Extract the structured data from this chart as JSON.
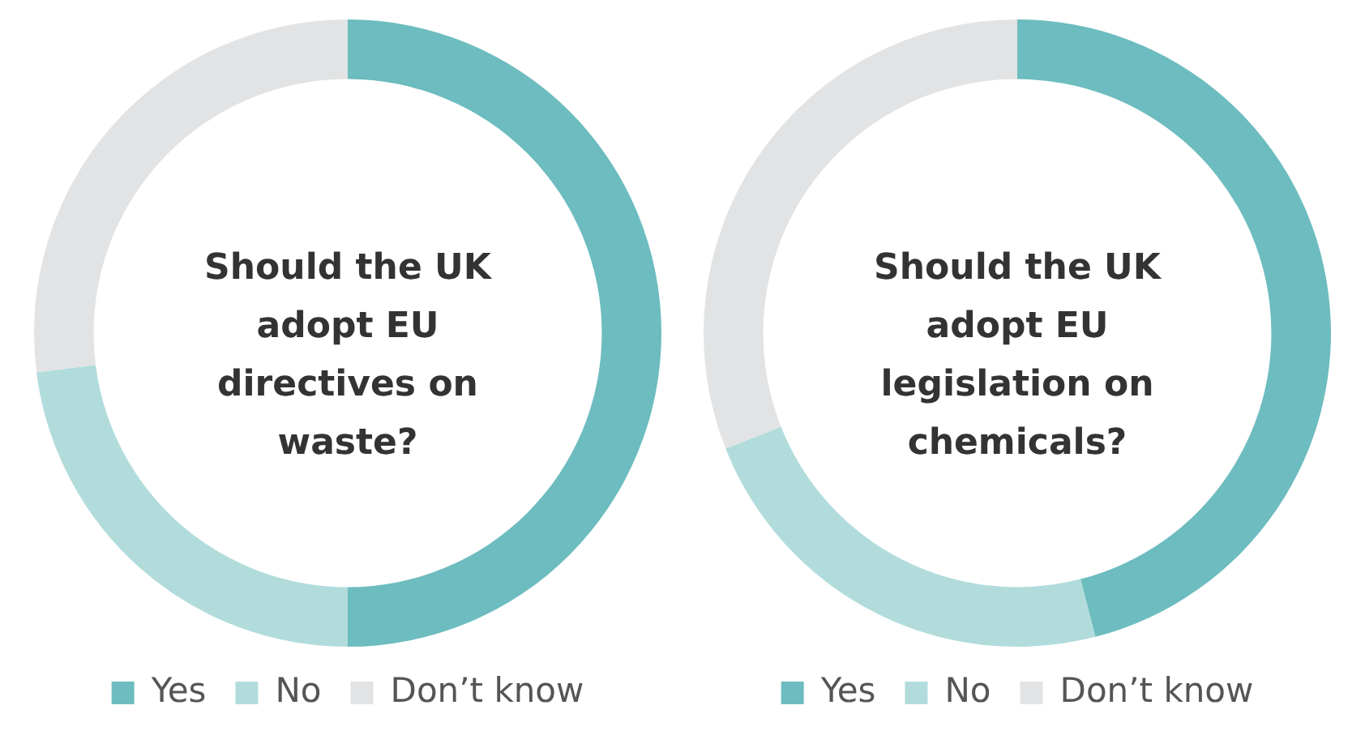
{
  "chart_data": [
    {
      "type": "donut",
      "title": "Should the UK adopt EU directives on waste?",
      "categories": [
        "Yes",
        "No",
        "Don’t know"
      ],
      "values": [
        50,
        23,
        27
      ],
      "colors": [
        "#6dbcbf",
        "#b2dcdc",
        "#e2e3e4"
      ],
      "legend": "bottom"
    },
    {
      "type": "donut",
      "title": "Should the UK adopt EU legislation on chemicals?",
      "categories": [
        "Yes",
        "No",
        "Don’t know"
      ],
      "values": [
        46,
        23,
        31
      ],
      "colors": [
        "#6dbcbf",
        "#b2dcdc",
        "#e2e3e4"
      ],
      "legend": "bottom"
    }
  ]
}
